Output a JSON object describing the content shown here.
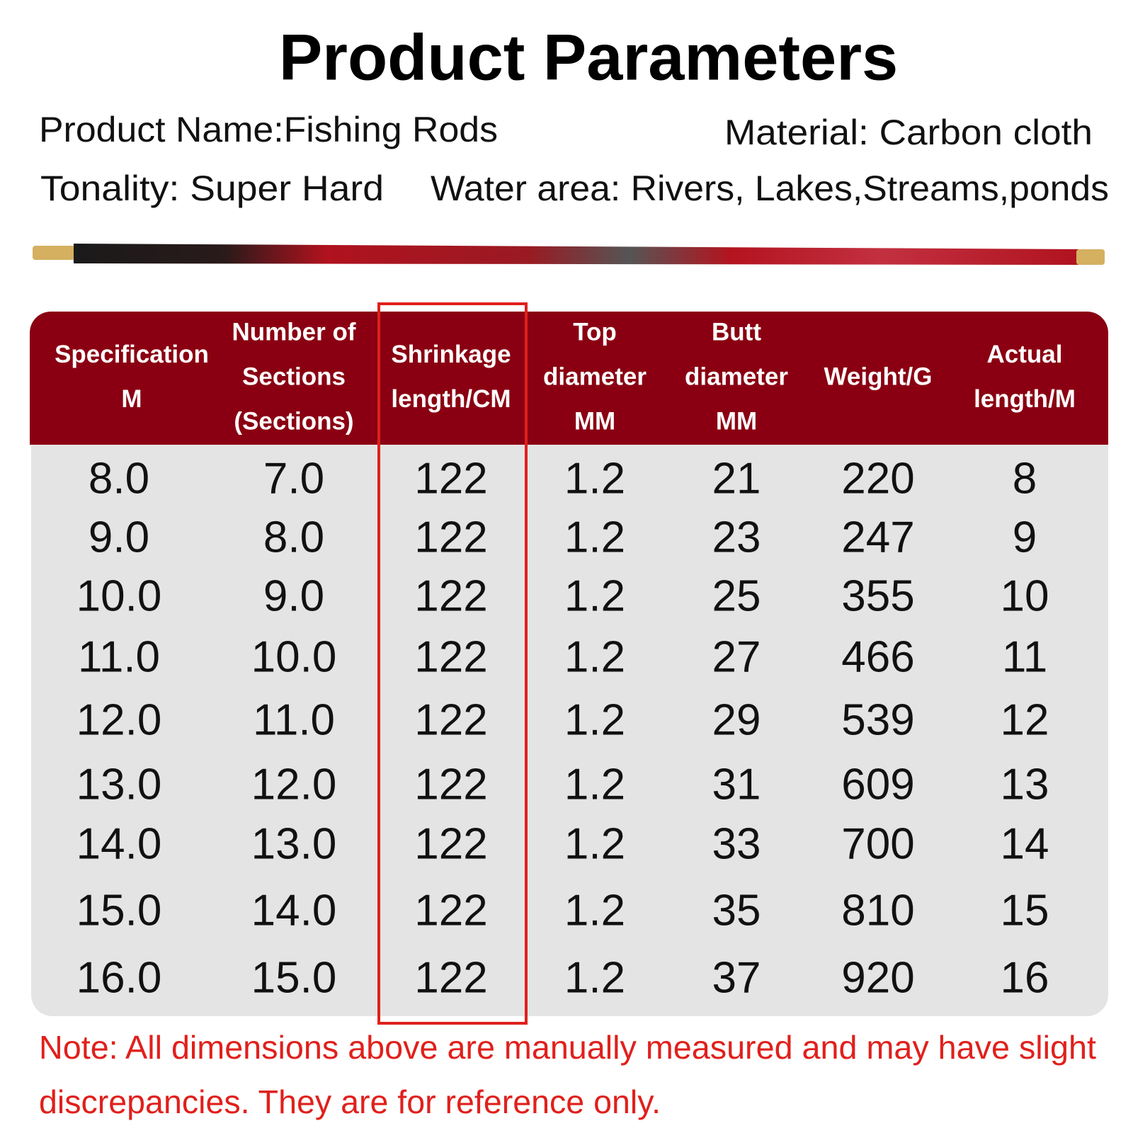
{
  "title": "Product Parameters",
  "info": {
    "product_name": "Product Name:Fishing Rods",
    "material": "Material: Carbon cloth",
    "tonality": "Tonality: Super Hard",
    "water_area": "Water area: Rivers, Lakes,Streams,ponds"
  },
  "table": {
    "headers": [
      [
        "Specification",
        "M"
      ],
      [
        "Number of",
        "Sections",
        "(Sections)"
      ],
      [
        "Shrinkage",
        "length/CM"
      ],
      [
        "Top",
        "diameter",
        "MM"
      ],
      [
        "Butt",
        "diameter",
        "MM"
      ],
      [
        "Weight/G"
      ],
      [
        "Actual",
        "length/M"
      ]
    ],
    "rows": [
      [
        "8.0",
        "7.0",
        "122",
        "1.2",
        "21",
        "220",
        "8"
      ],
      [
        "9.0",
        "8.0",
        "122",
        "1.2",
        "23",
        "247",
        "9"
      ],
      [
        "10.0",
        "9.0",
        "122",
        "1.2",
        "25",
        "355",
        "10"
      ],
      [
        "11.0",
        "10.0",
        "122",
        "1.2",
        "27",
        "466",
        "11"
      ],
      [
        "12.0",
        "11.0",
        "122",
        "1.2",
        "29",
        "539",
        "12"
      ],
      [
        "13.0",
        "12.0",
        "122",
        "1.2",
        "31",
        "609",
        "13"
      ],
      [
        "14.0",
        "13.0",
        "122",
        "1.2",
        "33",
        "700",
        "14"
      ],
      [
        "15.0",
        "14.0",
        "122",
        "1.2",
        "35",
        "810",
        "15"
      ],
      [
        "16.0",
        "15.0",
        "122",
        "1.2",
        "37",
        "920",
        "16"
      ]
    ]
  },
  "note": [
    "Note: All dimensions above are manually measured and may have slight",
    "discrepancies. They are for reference only."
  ]
}
